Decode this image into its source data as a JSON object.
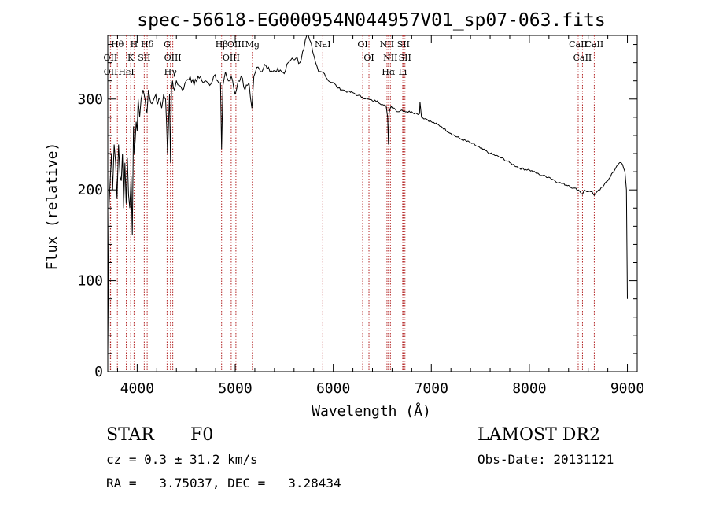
{
  "chart_data": {
    "type": "line",
    "title": "spec-56618-EG000954N044957V01_sp07-063.fits",
    "xlabel": "Wavelength (Å)",
    "ylabel": "Flux (relative)",
    "xlim": [
      3700,
      9100
    ],
    "ylim": [
      0,
      370
    ],
    "xticks": [
      4000,
      5000,
      6000,
      7000,
      8000,
      9000
    ],
    "yticks": [
      0,
      100,
      200,
      300
    ],
    "grid": false,
    "series": [
      {
        "x": [
          3700,
          3712,
          3725,
          3738,
          3750,
          3765,
          3780,
          3795,
          3810,
          3825,
          3838,
          3850,
          3862,
          3875,
          3888,
          3900,
          3912,
          3925,
          3938,
          3950,
          3962,
          3970,
          3980,
          3990,
          4000,
          4010,
          4025,
          4040,
          4060,
          4080,
          4100,
          4115,
          4130,
          4150,
          4170,
          4190,
          4210,
          4230,
          4250,
          4270,
          4290,
          4310,
          4330,
          4340,
          4350,
          4360,
          4380,
          4400,
          4430,
          4460,
          4500,
          4540,
          4580,
          4620,
          4660,
          4700,
          4740,
          4780,
          4820,
          4850,
          4861,
          4875,
          4900,
          4930,
          4960,
          5000,
          5030,
          5060,
          5100,
          5140,
          5170,
          5190,
          5220,
          5260,
          5300,
          5340,
          5380,
          5420,
          5460,
          5500,
          5540,
          5580,
          5620,
          5660,
          5700,
          5730,
          5760,
          5790,
          5820,
          5850,
          5880,
          5910,
          5950,
          6000,
          6050,
          6100,
          6150,
          6200,
          6250,
          6300,
          6350,
          6400,
          6450,
          6500,
          6540,
          6555,
          6563,
          6570,
          6590,
          6620,
          6660,
          6700,
          6750,
          6800,
          6850,
          6880,
          6885,
          6900,
          6950,
          7000,
          7100,
          7200,
          7300,
          7400,
          7500,
          7600,
          7700,
          7800,
          7900,
          8000,
          8100,
          8200,
          8300,
          8400,
          8450,
          8500,
          8542,
          8560,
          8600,
          8640,
          8662,
          8690,
          8720,
          8760,
          8800,
          8840,
          8880,
          8920,
          8950,
          8975,
          8990,
          9000
        ],
        "y": [
          20,
          180,
          210,
          240,
          200,
          250,
          230,
          190,
          250,
          215,
          210,
          240,
          180,
          230,
          185,
          235,
          195,
          180,
          215,
          150,
          270,
          240,
          255,
          275,
          265,
          300,
          280,
          300,
          310,
          300,
          285,
          310,
          300,
          295,
          300,
          305,
          295,
          300,
          290,
          305,
          300,
          240,
          305,
          230,
          310,
          320,
          310,
          320,
          315,
          310,
          320,
          325,
          315,
          325,
          320,
          320,
          315,
          325,
          320,
          318,
          245,
          315,
          330,
          320,
          325,
          305,
          320,
          325,
          310,
          318,
          290,
          325,
          335,
          330,
          338,
          335,
          330,
          330,
          332,
          328,
          340,
          345,
          345,
          340,
          355,
          370,
          365,
          352,
          340,
          330,
          330,
          328,
          320,
          318,
          312,
          310,
          308,
          307,
          304,
          302,
          300,
          298,
          298,
          294,
          292,
          280,
          250,
          285,
          292,
          290,
          286,
          288,
          286,
          286,
          284,
          284,
          297,
          280,
          278,
          275,
          270,
          262,
          256,
          252,
          246,
          240,
          236,
          230,
          224,
          222,
          217,
          214,
          208,
          205,
          202,
          200,
          195,
          200,
          198,
          198,
          194,
          198,
          200,
          205,
          210,
          218,
          224,
          230,
          228,
          220,
          200,
          80
        ],
        "color": "#000000"
      }
    ],
    "lines": [
      {
        "label": "Hθ",
        "x": 3798
      },
      {
        "label": "OII",
        "x": 3727
      },
      {
        "label": "OII",
        "x": 3729
      },
      {
        "label": "H",
        "x": 3968
      },
      {
        "label": "K",
        "x": 3934
      },
      {
        "label": "HeI",
        "x": 3889
      },
      {
        "label": "SII",
        "x": 4072
      },
      {
        "label": "Hδ",
        "x": 4102
      },
      {
        "label": "G",
        "x": 4305
      },
      {
        "label": "OIII",
        "x": 4363
      },
      {
        "label": "Hγ",
        "x": 4340
      },
      {
        "label": "Hβ",
        "x": 4861
      },
      {
        "label": "OIII",
        "x": 4959
      },
      {
        "label": "OIII",
        "x": 5007
      },
      {
        "label": "Mg",
        "x": 5175
      },
      {
        "label": "NaI",
        "x": 5893
      },
      {
        "label": "OI",
        "x": 6300
      },
      {
        "label": "OI",
        "x": 6364
      },
      {
        "label": "NII",
        "x": 6548
      },
      {
        "label": "NII",
        "x": 6583
      },
      {
        "label": "Hα",
        "x": 6563
      },
      {
        "label": "SII",
        "x": 6716
      },
      {
        "label": "SII",
        "x": 6731
      },
      {
        "label": "Li",
        "x": 6708
      },
      {
        "label": "CaII",
        "x": 8498
      },
      {
        "label": "CaII",
        "x": 8542
      },
      {
        "label": "CaII",
        "x": 8662
      }
    ]
  },
  "info": {
    "class_label": "STAR",
    "subclass": "F0",
    "survey": "LAMOST DR2",
    "cz": "cz = 0.3 ± 31.2 km/s",
    "obs_date": "Obs-Date: 20131121",
    "coords": "RA =   3.75037, DEC =   3.28434"
  }
}
